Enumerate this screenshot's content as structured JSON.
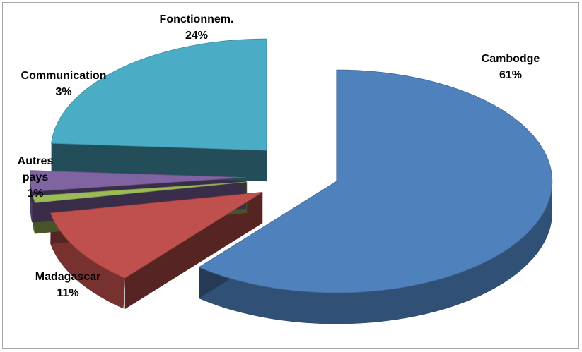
{
  "chart_data": {
    "type": "pie",
    "style": "3d-exploded",
    "slices": [
      {
        "label": "Cambodge",
        "label_lines": [
          "Cambodge"
        ],
        "value": 61,
        "value_label": "61%",
        "color": "#4F81BD"
      },
      {
        "label": "Madagascar",
        "label_lines": [
          "Madagascar"
        ],
        "value": 11,
        "value_label": "11%",
        "color": "#C0504D"
      },
      {
        "label": "Autres pays",
        "label_lines": [
          "Autres",
          "pays"
        ],
        "value": 1,
        "value_label": "1%",
        "color": "#9BBB59"
      },
      {
        "label": "Communication",
        "label_lines": [
          "Communication"
        ],
        "value": 3,
        "value_label": "3%",
        "color": "#8064A2"
      },
      {
        "label": "Fonctionnem.",
        "label_lines": [
          "Fonctionnem."
        ],
        "value": 24,
        "value_label": "24%",
        "color": "#4BACC6"
      }
    ],
    "legend": "none",
    "data_labels": "outside"
  }
}
